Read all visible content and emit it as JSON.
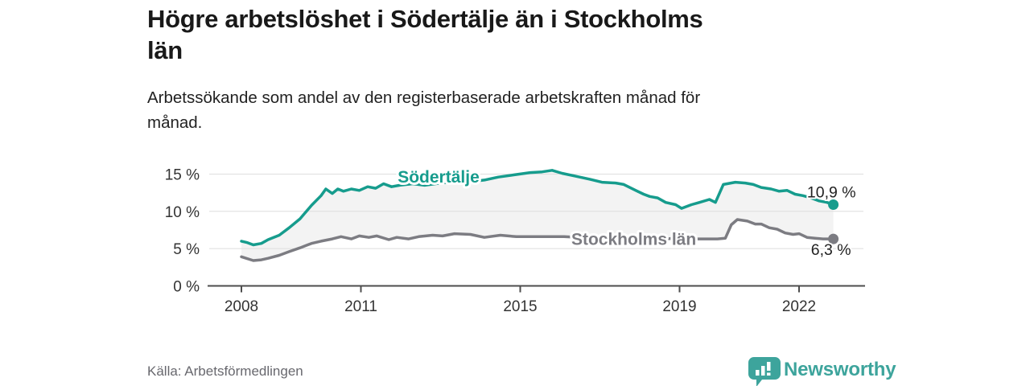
{
  "header": {
    "title_lines": [
      "Högre arbetslöshet i Södertälje än i Stockholms",
      "län"
    ],
    "subtitle_lines": [
      "Arbetssökande som andel av den registerbaserade arbetskraften månad för",
      "månad."
    ]
  },
  "footer": {
    "source": "Källa: Arbetsförmedlingen",
    "brand": "Newsworthy"
  },
  "colors": {
    "accent_teal": "#169c8d",
    "series_gray": "#7c7c82",
    "band_fill": "#f3f3f3",
    "grid": "#dedede",
    "axis": "#4d4d4d",
    "tick_text": "#333333",
    "brand_teal": "#3da49c"
  },
  "chart_data": {
    "type": "line",
    "title": "Högre arbetslöshet i Södertälje än i Stockholms län",
    "subtitle": "Arbetssökande som andel av den registerbaserade arbetskraften månad för månad.",
    "source": "Källa: Arbetsförmedlingen",
    "x_axis": {
      "ticks": [
        2008,
        2011,
        2015,
        2019,
        2022
      ],
      "range_years": [
        2007.2,
        2023.6
      ]
    },
    "y_axis": {
      "ticks": [
        0,
        5,
        10,
        15
      ],
      "tick_suffix": " %",
      "range": [
        0,
        16.8
      ],
      "grid": true
    },
    "legend_position": "inline-labels",
    "band_between_series": true,
    "series": [
      {
        "name": "Södertälje",
        "color": "#169c8d",
        "end_label": "10,9 %",
        "end_value": 10.9,
        "label_pos": {
          "year": 2012.95,
          "value": 14.55
        },
        "points": [
          [
            2008.0,
            6.0
          ],
          [
            2008.15,
            5.8
          ],
          [
            2008.3,
            5.5
          ],
          [
            2008.5,
            5.7
          ],
          [
            2008.67,
            6.2
          ],
          [
            2008.95,
            6.8
          ],
          [
            2009.2,
            7.8
          ],
          [
            2009.47,
            9.0
          ],
          [
            2009.76,
            10.8
          ],
          [
            2010.0,
            12.1
          ],
          [
            2010.12,
            13.0
          ],
          [
            2010.28,
            12.4
          ],
          [
            2010.42,
            13.0
          ],
          [
            2010.56,
            12.7
          ],
          [
            2010.76,
            13.0
          ],
          [
            2010.96,
            12.8
          ],
          [
            2011.17,
            13.3
          ],
          [
            2011.37,
            13.1
          ],
          [
            2011.57,
            13.7
          ],
          [
            2011.77,
            13.3
          ],
          [
            2011.97,
            13.5
          ],
          [
            2012.3,
            13.7
          ],
          [
            2012.6,
            13.5
          ],
          [
            2013.0,
            13.8
          ],
          [
            2013.4,
            14.0
          ],
          [
            2013.8,
            14.0
          ],
          [
            2014.1,
            14.2
          ],
          [
            2014.45,
            14.6
          ],
          [
            2014.85,
            14.9
          ],
          [
            2015.25,
            15.2
          ],
          [
            2015.55,
            15.3
          ],
          [
            2015.8,
            15.5
          ],
          [
            2016.05,
            15.1
          ],
          [
            2016.4,
            14.7
          ],
          [
            2016.75,
            14.3
          ],
          [
            2017.05,
            13.9
          ],
          [
            2017.4,
            13.8
          ],
          [
            2017.6,
            13.6
          ],
          [
            2017.9,
            12.8
          ],
          [
            2018.1,
            12.3
          ],
          [
            2018.25,
            12.0
          ],
          [
            2018.45,
            11.8
          ],
          [
            2018.65,
            11.2
          ],
          [
            2018.9,
            10.9
          ],
          [
            2019.05,
            10.4
          ],
          [
            2019.3,
            10.9
          ],
          [
            2019.5,
            11.2
          ],
          [
            2019.75,
            11.6
          ],
          [
            2019.9,
            11.2
          ],
          [
            2020.1,
            13.6
          ],
          [
            2020.4,
            13.9
          ],
          [
            2020.65,
            13.8
          ],
          [
            2020.85,
            13.6
          ],
          [
            2021.05,
            13.2
          ],
          [
            2021.3,
            13.0
          ],
          [
            2021.5,
            12.7
          ],
          [
            2021.7,
            12.8
          ],
          [
            2021.9,
            12.3
          ],
          [
            2022.1,
            12.1
          ],
          [
            2022.3,
            11.8
          ],
          [
            2022.5,
            11.4
          ],
          [
            2022.7,
            11.2
          ],
          [
            2022.86,
            10.9
          ]
        ]
      },
      {
        "name": "Stockholms län",
        "color": "#7c7c82",
        "end_label": "6,3 %",
        "end_value": 6.3,
        "label_pos": {
          "year": 2017.85,
          "value": 6.2
        },
        "points": [
          [
            2008.0,
            3.9
          ],
          [
            2008.3,
            3.4
          ],
          [
            2008.5,
            3.5
          ],
          [
            2008.67,
            3.7
          ],
          [
            2008.95,
            4.1
          ],
          [
            2009.2,
            4.6
          ],
          [
            2009.47,
            5.1
          ],
          [
            2009.76,
            5.7
          ],
          [
            2010.0,
            6.0
          ],
          [
            2010.28,
            6.3
          ],
          [
            2010.5,
            6.6
          ],
          [
            2010.76,
            6.3
          ],
          [
            2010.96,
            6.7
          ],
          [
            2011.2,
            6.5
          ],
          [
            2011.4,
            6.7
          ],
          [
            2011.7,
            6.2
          ],
          [
            2011.9,
            6.5
          ],
          [
            2012.2,
            6.3
          ],
          [
            2012.45,
            6.6
          ],
          [
            2012.8,
            6.8
          ],
          [
            2013.05,
            6.7
          ],
          [
            2013.35,
            7.0
          ],
          [
            2013.75,
            6.9
          ],
          [
            2014.1,
            6.5
          ],
          [
            2014.5,
            6.8
          ],
          [
            2014.9,
            6.6
          ],
          [
            2015.3,
            6.6
          ],
          [
            2015.8,
            6.6
          ],
          [
            2016.1,
            6.6
          ],
          [
            2016.5,
            6.5
          ],
          [
            2017.0,
            6.4
          ],
          [
            2017.5,
            6.3
          ],
          [
            2018.0,
            6.2
          ],
          [
            2018.5,
            6.2
          ],
          [
            2018.85,
            6.4
          ],
          [
            2019.1,
            6.4
          ],
          [
            2019.4,
            6.3
          ],
          [
            2019.7,
            6.3
          ],
          [
            2019.95,
            6.3
          ],
          [
            2020.15,
            6.4
          ],
          [
            2020.3,
            8.2
          ],
          [
            2020.45,
            8.9
          ],
          [
            2020.7,
            8.7
          ],
          [
            2020.9,
            8.3
          ],
          [
            2021.05,
            8.3
          ],
          [
            2021.25,
            7.8
          ],
          [
            2021.45,
            7.6
          ],
          [
            2021.65,
            7.1
          ],
          [
            2021.85,
            6.9
          ],
          [
            2022.0,
            7.0
          ],
          [
            2022.2,
            6.5
          ],
          [
            2022.4,
            6.4
          ],
          [
            2022.6,
            6.3
          ],
          [
            2022.86,
            6.3
          ]
        ]
      }
    ]
  }
}
